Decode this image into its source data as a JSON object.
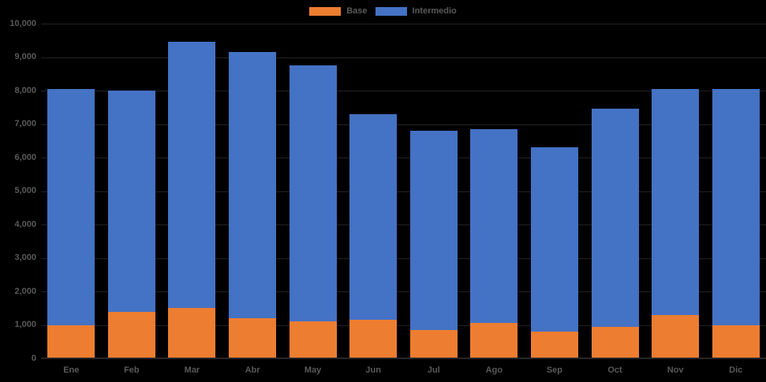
{
  "chart_data": {
    "type": "bar",
    "stacked": true,
    "title": "",
    "xlabel": "",
    "ylabel": "",
    "categories": [
      "Ene",
      "Feb",
      "Mar",
      "Abr",
      "May",
      "Jun",
      "Jul",
      "Ago",
      "Sep",
      "Oct",
      "Nov",
      "Dic"
    ],
    "series": [
      {
        "name": "Base",
        "color": "#ED7D31",
        "values": [
          1000,
          1400,
          1500,
          1200,
          1100,
          1150,
          850,
          1050,
          800,
          950,
          1300,
          1000
        ]
      },
      {
        "name": "Intermedio",
        "color": "#4472C4",
        "values": [
          7050,
          6600,
          7950,
          7950,
          7650,
          6150,
          5950,
          5800,
          5500,
          6500,
          6750,
          7050
        ]
      }
    ],
    "totals": [
      8050,
      8000,
      9450,
      9150,
      8750,
      7300,
      6800,
      6850,
      6300,
      7450,
      8050,
      8050
    ],
    "ylim": [
      0,
      10000
    ],
    "ytick_step": 1000,
    "ytick_labels": [
      "0",
      "1,000",
      "2,000",
      "3,000",
      "4,000",
      "5,000",
      "6,000",
      "7,000",
      "8,000",
      "9,000",
      "10,000"
    ],
    "grid": true,
    "legend_position": "top-center"
  },
  "colors": {
    "background": "#000000",
    "axis_text": "#595959",
    "gridline": "#222222",
    "series_base": "#ED7D31",
    "series_intermedio": "#4472C4"
  }
}
